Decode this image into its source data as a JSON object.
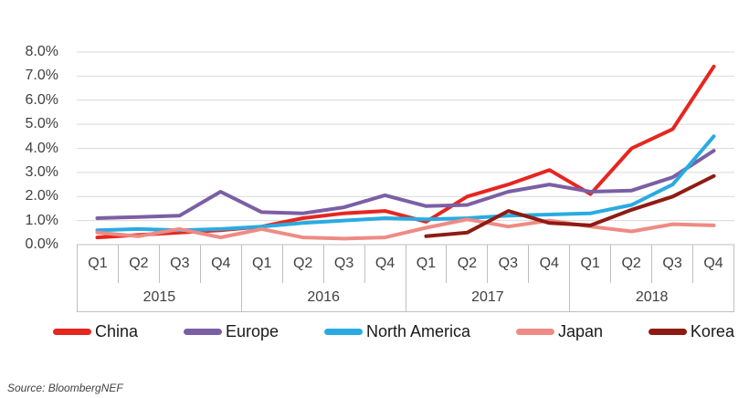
{
  "chart_data": {
    "type": "line",
    "categories": [
      "Q1 2015",
      "Q2 2015",
      "Q3 2015",
      "Q4 2015",
      "Q1 2016",
      "Q2 2016",
      "Q3 2016",
      "Q4 2016",
      "Q1 2017",
      "Q2 2017",
      "Q3 2017",
      "Q4 2017",
      "Q1 2018",
      "Q2 2018",
      "Q3 2018",
      "Q4 2018"
    ],
    "quarter_labels": [
      "Q1",
      "Q2",
      "Q3",
      "Q4",
      "Q1",
      "Q2",
      "Q3",
      "Q4",
      "Q1",
      "Q2",
      "Q3",
      "Q4",
      "Q1",
      "Q2",
      "Q3",
      "Q4"
    ],
    "year_labels": [
      "2015",
      "2016",
      "2017",
      "2018"
    ],
    "series": [
      {
        "id": "china",
        "name": "China",
        "color": "#e6261f",
        "values": [
          0.3,
          0.4,
          0.5,
          0.6,
          0.75,
          1.1,
          1.3,
          1.4,
          0.95,
          2.0,
          2.5,
          3.1,
          2.1,
          4.0,
          4.8,
          7.4
        ]
      },
      {
        "id": "europe",
        "name": "Europe",
        "color": "#7b5fa5",
        "values": [
          1.1,
          1.15,
          1.2,
          2.2,
          1.35,
          1.3,
          1.55,
          2.05,
          1.6,
          1.65,
          2.2,
          2.5,
          2.2,
          2.25,
          2.8,
          3.9
        ]
      },
      {
        "id": "north-america",
        "name": "North America",
        "color": "#29abe2",
        "values": [
          0.6,
          0.65,
          0.6,
          0.65,
          0.75,
          0.9,
          1.0,
          1.1,
          1.05,
          1.1,
          1.2,
          1.25,
          1.3,
          1.65,
          2.5,
          4.5
        ]
      },
      {
        "id": "japan",
        "name": "Japan",
        "color": "#ee8b84",
        "values": [
          0.5,
          0.35,
          0.65,
          0.3,
          0.65,
          0.3,
          0.25,
          0.3,
          0.7,
          1.05,
          0.75,
          1.0,
          0.75,
          0.55,
          0.85,
          0.8
        ]
      },
      {
        "id": "korea",
        "name": "Korea",
        "color": "#8e1b13",
        "values": [
          null,
          null,
          null,
          null,
          null,
          null,
          null,
          null,
          0.35,
          0.5,
          1.4,
          0.9,
          0.8,
          1.45,
          2.0,
          2.85
        ]
      }
    ],
    "y_tick_labels": [
      "8.0%",
      "7.0%",
      "6.0%",
      "5.0%",
      "4.0%",
      "3.0%",
      "2.0%",
      "1.0%",
      "0.0%"
    ],
    "ylim": [
      0,
      8
    ],
    "y_tick_step": 1,
    "unit": "%",
    "grid": "horizontal",
    "legend_position": "bottom",
    "title": ""
  },
  "source_note": "Source: BloombergNEF",
  "colors": {
    "gridline": "#d9d9d9",
    "axis_line": "#bfbfbf",
    "axis_text": "#404040",
    "legend_text": "#1a1a1a",
    "background": "#ffffff"
  }
}
